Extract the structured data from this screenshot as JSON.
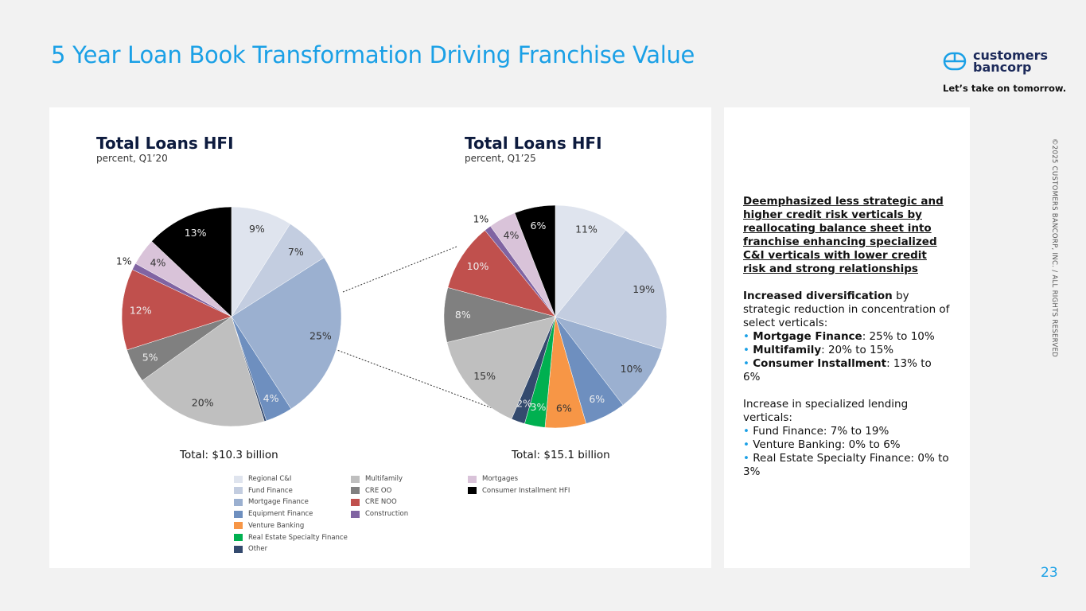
{
  "title": "5 Year Loan Book Transformation Driving Franchise Value",
  "logo": {
    "line1": "customers",
    "line2": "bancorp",
    "tagline": "Let’s take on tomorrow."
  },
  "page_number": "23",
  "copyright": "©2025 CUSTOMERS BANCORP, INC. / ALL RIGHTS RESERVED",
  "chart_data": [
    {
      "type": "pie",
      "title": "Total Loans HFI",
      "subtitle": "percent, Q1’20",
      "total": "Total: $10.3 billion",
      "slices": [
        {
          "name": "Regional C&I",
          "value": 9,
          "label": "9%"
        },
        {
          "name": "Fund Finance",
          "value": 7,
          "label": "7%"
        },
        {
          "name": "Mortgage Finance",
          "value": 25,
          "label": "25%"
        },
        {
          "name": "Equipment Finance",
          "value": 4,
          "label": "4%"
        },
        {
          "name": "Other",
          "value": 0.3,
          "label": ""
        },
        {
          "name": "Multifamily",
          "value": 20,
          "label": "20%"
        },
        {
          "name": "CRE OO",
          "value": 5,
          "label": "5%"
        },
        {
          "name": "CRE NOO",
          "value": 12,
          "label": "12%"
        },
        {
          "name": "Construction",
          "value": 1,
          "label": "1%"
        },
        {
          "name": "Mortgages",
          "value": 4,
          "label": "4%"
        },
        {
          "name": "Consumer Installment HFI",
          "value": 13,
          "label": "13%"
        }
      ]
    },
    {
      "type": "pie",
      "title": "Total Loans HFI",
      "subtitle": "percent, Q1’25",
      "total": "Total: $15.1 billion",
      "slices": [
        {
          "name": "Regional C&I",
          "value": 11,
          "label": "11%"
        },
        {
          "name": "Fund Finance",
          "value": 19,
          "label": "19%"
        },
        {
          "name": "Mortgage Finance",
          "value": 10,
          "label": "10%"
        },
        {
          "name": "Equipment Finance",
          "value": 6,
          "label": "6%"
        },
        {
          "name": "Venture Banking",
          "value": 6,
          "label": "6%"
        },
        {
          "name": "Real Estate Specialty Finance",
          "value": 3,
          "label": "3%"
        },
        {
          "name": "Other",
          "value": 2,
          "label": "2%"
        },
        {
          "name": "Multifamily",
          "value": 15,
          "label": "15%"
        },
        {
          "name": "CRE OO",
          "value": 8,
          "label": "8%"
        },
        {
          "name": "CRE NOO",
          "value": 10,
          "label": "10%"
        },
        {
          "name": "Construction",
          "value": 1,
          "label": "1%"
        },
        {
          "name": "Mortgages",
          "value": 4,
          "label": "4%"
        },
        {
          "name": "Consumer Installment HFI",
          "value": 6,
          "label": "6%"
        }
      ]
    }
  ],
  "colors": {
    "Regional C&I": "#dfe4ee",
    "Fund Finance": "#c3cde0",
    "Mortgage Finance": "#9bb0d0",
    "Equipment Finance": "#6e8fbf",
    "Venture Banking": "#f79646",
    "Real Estate Specialty Finance": "#00b050",
    "Other": "#344a6e",
    "Multifamily": "#bfbfbf",
    "CRE OO": "#808080",
    "CRE NOO": "#c0504d",
    "Construction": "#8064a2",
    "Mortgages": "#d9c3d9",
    "Consumer Installment HFI": "#000000"
  },
  "legend": [
    [
      "Regional C&I",
      "Fund Finance",
      "Mortgage Finance",
      "Equipment Finance",
      "Venture Banking",
      "Real Estate Specialty Finance",
      "Other"
    ],
    [
      "Multifamily",
      "CRE OO",
      "CRE NOO",
      "Construction"
    ],
    [
      "Mortgages",
      "Consumer Installment HFI"
    ]
  ],
  "text": {
    "p1": "Deemphasized less strategic and higher credit risk verticals by reallocating balance sheet into franchise enhancing specialized C&I verticals with lower credit risk and strong relationships",
    "p2_bold": "Increased diversification",
    "p2_rest": " by strategic reduction in concentration of select verticals:",
    "list1": [
      {
        "b": "Mortgage Finance",
        "r": ": 25% to 10%"
      },
      {
        "b": "Multifamily",
        "r": ": 20% to 15%"
      },
      {
        "b": "Consumer Installment",
        "r": ": 13% to 6%"
      }
    ],
    "p3": "Increase in specialized lending verticals:",
    "list2": [
      "Fund Finance: 7% to 19%",
      "Venture Banking: 0% to 6%",
      "Real Estate Specialty Finance: 0% to 3%"
    ]
  }
}
